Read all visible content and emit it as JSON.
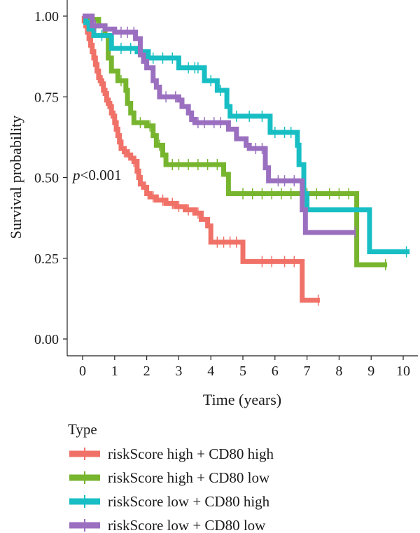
{
  "chart_data": {
    "type": "line",
    "subtype": "kaplan-meier",
    "xlabel": "Time (years)",
    "ylabel": "Survival probability",
    "xlim": [
      0,
      10
    ],
    "ylim": [
      0,
      1
    ],
    "xticks": [
      "0",
      "1",
      "2",
      "3",
      "4",
      "5",
      "6",
      "7",
      "8",
      "9",
      "10"
    ],
    "yticks": [
      "0.00",
      "0.25",
      "0.50",
      "0.75",
      "1.00"
    ],
    "grid": false,
    "annotation_p": "p",
    "annotation_rest": "<0.001",
    "legend_title": "Type",
    "legend_position": "bottom",
    "series": [
      {
        "name": "riskScore high + CD80 high",
        "color": "#F07167",
        "steps": [
          [
            0,
            1.0
          ],
          [
            0.05,
            0.985
          ],
          [
            0.1,
            0.97
          ],
          [
            0.15,
            0.95
          ],
          [
            0.2,
            0.93
          ],
          [
            0.25,
            0.91
          ],
          [
            0.3,
            0.89
          ],
          [
            0.35,
            0.87
          ],
          [
            0.4,
            0.85
          ],
          [
            0.45,
            0.83
          ],
          [
            0.5,
            0.81
          ],
          [
            0.55,
            0.8
          ],
          [
            0.6,
            0.79
          ],
          [
            0.65,
            0.77
          ],
          [
            0.7,
            0.76
          ],
          [
            0.75,
            0.74
          ],
          [
            0.8,
            0.73
          ],
          [
            0.85,
            0.72
          ],
          [
            0.9,
            0.7
          ],
          [
            0.95,
            0.69
          ],
          [
            1.0,
            0.67
          ],
          [
            1.05,
            0.65
          ],
          [
            1.1,
            0.63
          ],
          [
            1.15,
            0.61
          ],
          [
            1.2,
            0.59
          ],
          [
            1.3,
            0.58
          ],
          [
            1.4,
            0.57
          ],
          [
            1.5,
            0.56
          ],
          [
            1.6,
            0.55
          ],
          [
            1.7,
            0.52
          ],
          [
            1.75,
            0.5
          ],
          [
            1.8,
            0.48
          ],
          [
            1.9,
            0.47
          ],
          [
            2.0,
            0.45
          ],
          [
            2.1,
            0.44
          ],
          [
            2.3,
            0.43
          ],
          [
            2.6,
            0.42
          ],
          [
            2.9,
            0.41
          ],
          [
            3.2,
            0.4
          ],
          [
            3.5,
            0.39
          ],
          [
            3.7,
            0.37
          ],
          [
            3.9,
            0.35
          ],
          [
            4.0,
            0.3
          ],
          [
            5.0,
            0.24
          ],
          [
            6.85,
            0.12
          ],
          [
            7.4,
            0.12
          ]
        ],
        "censor_x": [
          1.3,
          1.6,
          2.2,
          2.5,
          2.8,
          3.0,
          3.3,
          3.6,
          4.2,
          4.4,
          4.6,
          4.8,
          5.6,
          5.9,
          6.3,
          6.6,
          7.35
        ]
      },
      {
        "name": "riskScore high + CD80 low",
        "color": "#77B52F",
        "steps": [
          [
            0,
            1.0
          ],
          [
            0.2,
            0.99
          ],
          [
            0.5,
            0.97
          ],
          [
            0.7,
            0.94
          ],
          [
            0.8,
            0.87
          ],
          [
            0.9,
            0.83
          ],
          [
            1.1,
            0.8
          ],
          [
            1.35,
            0.77
          ],
          [
            1.4,
            0.73
          ],
          [
            1.5,
            0.7
          ],
          [
            1.6,
            0.67
          ],
          [
            2.0,
            0.66
          ],
          [
            2.2,
            0.63
          ],
          [
            2.3,
            0.6
          ],
          [
            2.5,
            0.57
          ],
          [
            2.6,
            0.54
          ],
          [
            4.4,
            0.51
          ],
          [
            4.55,
            0.45
          ],
          [
            8.55,
            0.23
          ],
          [
            9.5,
            0.23
          ]
        ],
        "censor_x": [
          0.3,
          1.2,
          1.8,
          2.1,
          2.4,
          2.8,
          3.0,
          3.3,
          3.6,
          3.9,
          4.2,
          5.0,
          5.3,
          5.6,
          5.9,
          6.2,
          6.5,
          7.0,
          7.3,
          7.7,
          8.0,
          8.3,
          9.45
        ]
      },
      {
        "name": "riskScore low + CD80 high",
        "color": "#17BEC3",
        "steps": [
          [
            0,
            1.0
          ],
          [
            0.1,
            0.98
          ],
          [
            0.2,
            0.96
          ],
          [
            0.35,
            0.94
          ],
          [
            0.9,
            0.9
          ],
          [
            1.7,
            0.89
          ],
          [
            2.05,
            0.87
          ],
          [
            3.0,
            0.84
          ],
          [
            3.8,
            0.8
          ],
          [
            4.2,
            0.77
          ],
          [
            4.5,
            0.72
          ],
          [
            4.6,
            0.69
          ],
          [
            5.85,
            0.64
          ],
          [
            6.7,
            0.6
          ],
          [
            6.75,
            0.54
          ],
          [
            6.9,
            0.45
          ],
          [
            7.0,
            0.4
          ],
          [
            8.95,
            0.27
          ],
          [
            10.2,
            0.27
          ]
        ],
        "censor_x": [
          0.6,
          1.2,
          1.5,
          2.2,
          2.5,
          2.8,
          3.3,
          3.5,
          3.6,
          4.0,
          4.3,
          4.8,
          5.2,
          5.6,
          6.0,
          6.3,
          6.5,
          10.1
        ]
      },
      {
        "name": "riskScore low + CD80 low",
        "color": "#9B6FC0",
        "steps": [
          [
            0,
            1.0
          ],
          [
            0.3,
            0.97
          ],
          [
            0.7,
            0.96
          ],
          [
            1.0,
            0.95
          ],
          [
            1.65,
            0.93
          ],
          [
            1.8,
            0.88
          ],
          [
            1.9,
            0.86
          ],
          [
            2.0,
            0.84
          ],
          [
            2.2,
            0.8
          ],
          [
            2.3,
            0.78
          ],
          [
            2.4,
            0.75
          ],
          [
            3.0,
            0.74
          ],
          [
            3.1,
            0.72
          ],
          [
            3.3,
            0.7
          ],
          [
            3.4,
            0.68
          ],
          [
            3.5,
            0.67
          ],
          [
            4.55,
            0.65
          ],
          [
            4.8,
            0.62
          ],
          [
            5.1,
            0.6
          ],
          [
            5.2,
            0.59
          ],
          [
            5.7,
            0.53
          ],
          [
            5.8,
            0.49
          ],
          [
            6.85,
            0.4
          ],
          [
            6.95,
            0.33
          ],
          [
            8.5,
            0.33
          ]
        ],
        "censor_x": [
          0.4,
          1.2,
          1.4,
          1.6,
          2.6,
          2.9,
          3.6,
          3.8,
          4.1,
          4.3,
          5.4,
          5.6,
          6.1,
          6.3,
          6.6,
          8.5
        ]
      }
    ]
  }
}
